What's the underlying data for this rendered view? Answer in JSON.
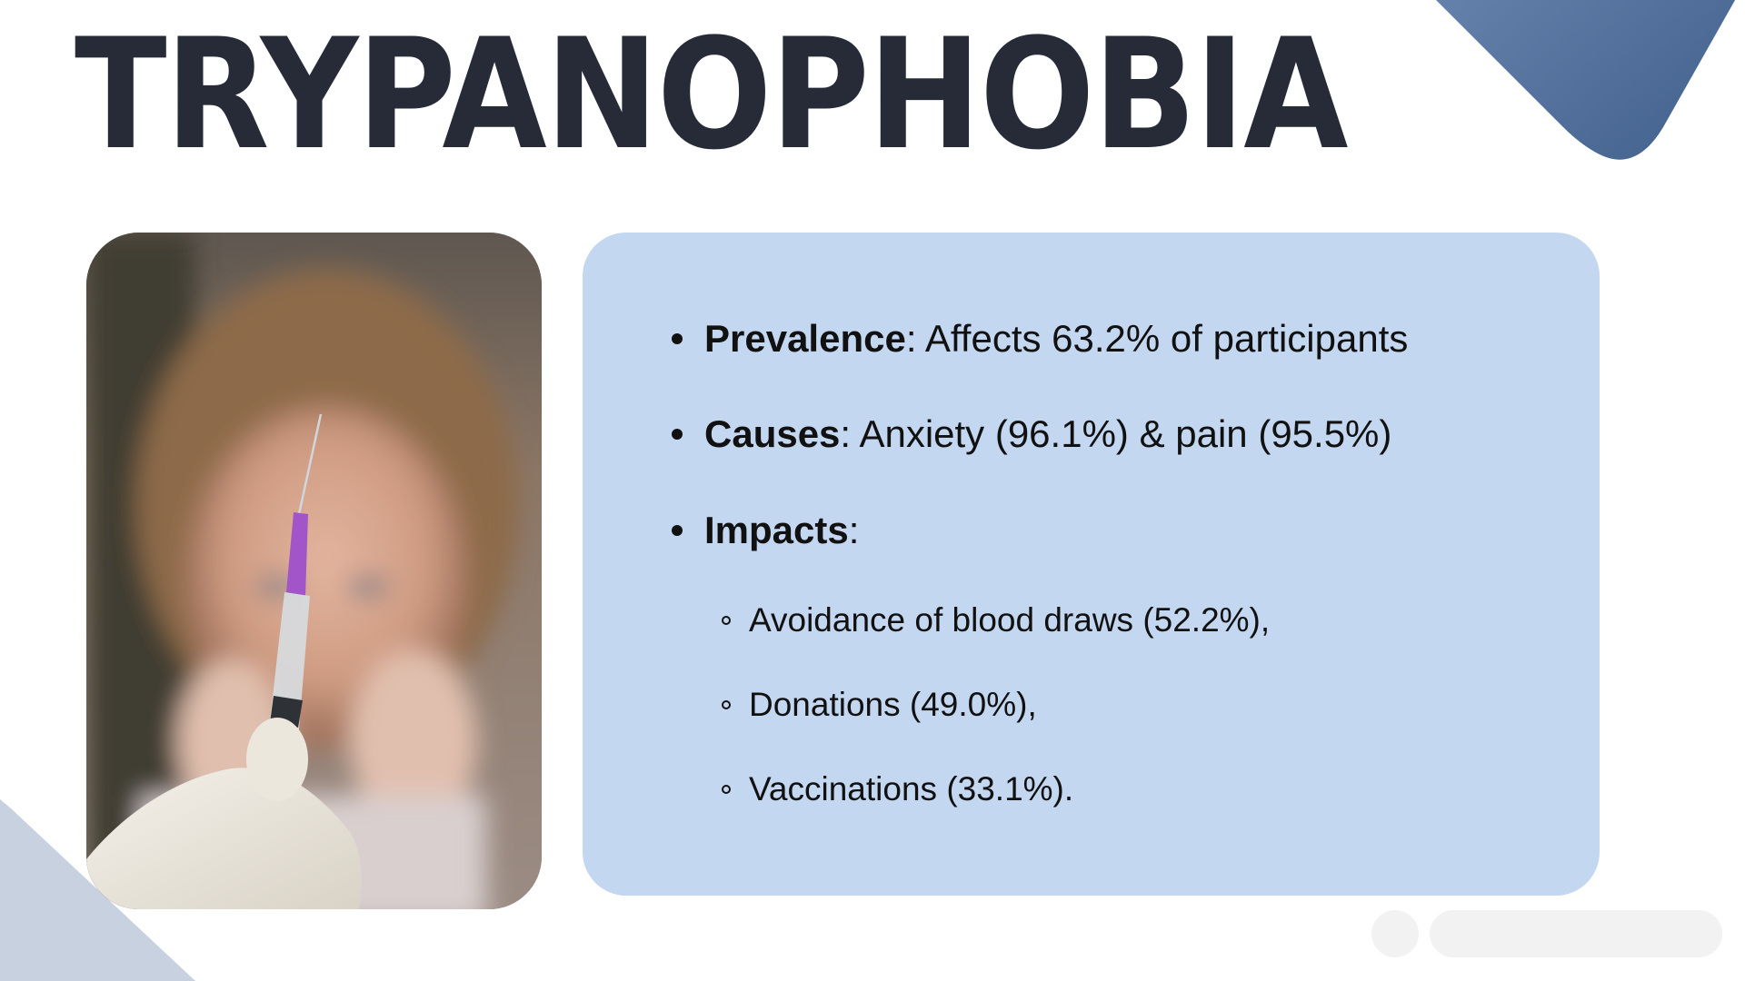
{
  "slide": {
    "title": "TRYPANOPHOBIA",
    "photo": {
      "icon": "syringe-photo",
      "description_hidden": ""
    },
    "bullets": [
      {
        "term": "Prevalence",
        "text": ": Affects 63.2% of participants"
      },
      {
        "term": "Causes",
        "text": ": Anxiety (96.1%) & pain (95.5%)"
      },
      {
        "term": "Impacts",
        "text": ":"
      }
    ],
    "sub_bullets": [
      {
        "text": "Avoidance of blood draws (52.2%),"
      },
      {
        "text": "Donations (49.0%),"
      },
      {
        "text": "Vaccinations (33.1%)."
      }
    ]
  },
  "colors": {
    "title": "#262b37",
    "panel": "#c4d7f1",
    "corner_top_right_start": "#3f5d8a",
    "corner_top_right_end": "#6f8db5",
    "corner_bottom_left": "#c5d0df",
    "control_background": "#f2f2f2"
  }
}
